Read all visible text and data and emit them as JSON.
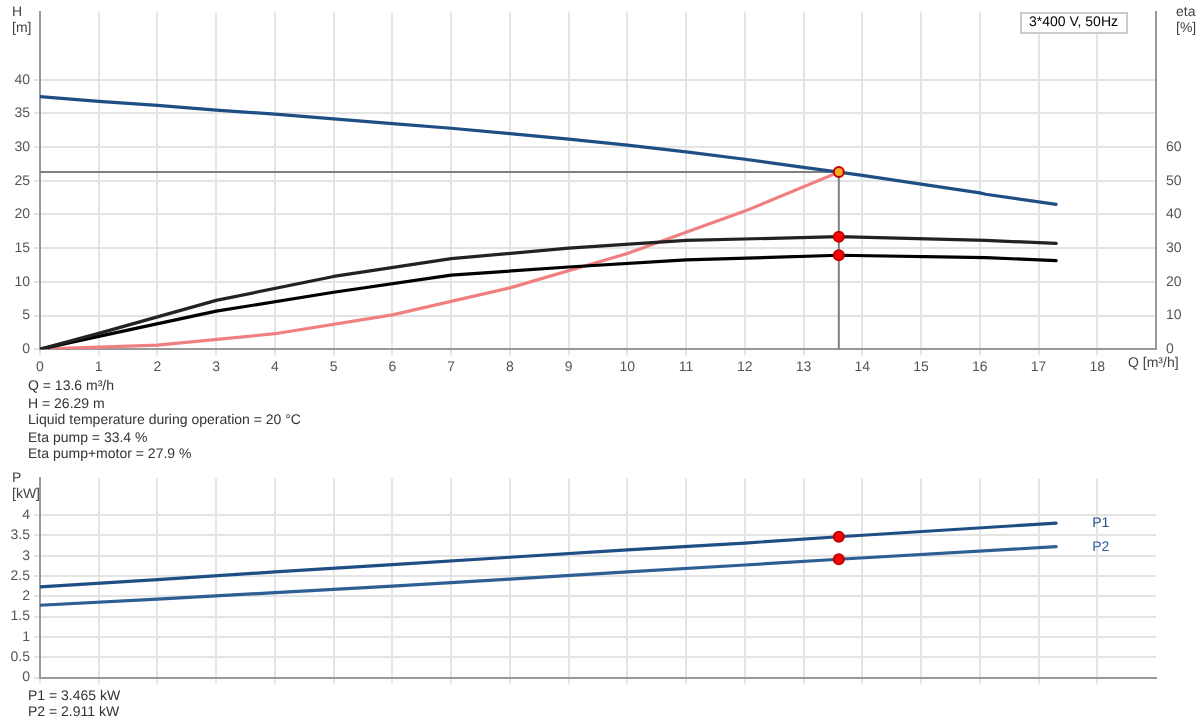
{
  "chart_data": [
    {
      "type": "line",
      "subtitle": "3*400 V, 50Hz",
      "xlabel": "Q [m³/h]",
      "ylabel": "H [m]",
      "y2label": "eta [%]",
      "xlim": [
        0,
        19
      ],
      "xticks": [
        0,
        1,
        2,
        3,
        4,
        5,
        6,
        7,
        8,
        9,
        10,
        11,
        12,
        13,
        14,
        15,
        16,
        17,
        18
      ],
      "ylim": [
        0,
        50
      ],
      "yticks": [
        0,
        5,
        10,
        15,
        20,
        25,
        30,
        35,
        40
      ],
      "y2lim": [
        0,
        100
      ],
      "y2ticks": [
        0,
        10,
        20,
        30,
        40,
        50,
        60
      ],
      "grid": true,
      "legend": false,
      "marker": "none",
      "line_style": "solid",
      "series": [
        {
          "type": "line",
          "color": "#1f4e85",
          "x": [
            0,
            1,
            2,
            3,
            4,
            5,
            6,
            7,
            8,
            9,
            10,
            11,
            12,
            13,
            13.6,
            14,
            15,
            16,
            16.1,
            17.3
          ],
          "values": [
            37.5,
            36.8,
            36.2,
            35.5,
            34.9,
            34.2,
            33.5,
            32.8,
            32.0,
            31.2,
            30.3,
            29.3,
            28.2,
            27.0,
            26.29,
            25.8,
            24.5,
            23.2,
            23.0,
            21.5
          ]
        },
        {
          "type": "line",
          "color": "#222222",
          "axis": "y2",
          "x": [
            0,
            1,
            3,
            5,
            7,
            9,
            11,
            13.6,
            16.1,
            17.3
          ],
          "values": [
            0,
            4.7,
            14.5,
            21.6,
            26.9,
            30.0,
            32.3,
            33.4,
            32.3,
            31.4
          ]
        },
        {
          "type": "line",
          "color": "#000000",
          "axis": "y2",
          "x": [
            0,
            1,
            3,
            5,
            7,
            9,
            11,
            13.6,
            16.1,
            17.3
          ],
          "values": [
            0,
            3.8,
            11.3,
            16.9,
            22.0,
            24.4,
            26.5,
            27.9,
            27.2,
            26.3
          ]
        },
        {
          "type": "line",
          "color": "#f08080",
          "x": [
            0,
            2,
            4,
            6,
            8,
            10,
            12,
            13.6
          ],
          "values": [
            0,
            0.6,
            2.3,
            5.1,
            9.1,
            14.2,
            20.5,
            26.29
          ]
        },
        {
          "type": "scatter",
          "color": "#f5a623",
          "marker": "circle",
          "x": [
            13.6
          ],
          "values": [
            26.29
          ]
        },
        {
          "type": "scatter",
          "color": "#ff0000",
          "marker": "circle",
          "axis": "y2",
          "x": [
            13.6,
            13.6
          ],
          "values": [
            33.4,
            27.9
          ]
        }
      ],
      "ref_lines": [
        {
          "axis": "x",
          "value": 13.6,
          "color": "#808080"
        },
        {
          "axis": "y",
          "value": 26.29,
          "color": "#808080"
        }
      ],
      "annotations": [
        "Q = 13.6 m³/h",
        "H = 26.29 m",
        "Liquid temperature during operation = 20 °C",
        "Eta pump = 33.4 %",
        "Eta pump+motor = 27.9 %"
      ]
    },
    {
      "type": "line",
      "ylabel": "P [kW]",
      "xlim": [
        0,
        19
      ],
      "xticks": [
        0,
        1,
        2,
        3,
        4,
        5,
        6,
        7,
        8,
        9,
        10,
        11,
        12,
        13,
        14,
        15,
        16,
        17,
        18
      ],
      "ylim": [
        0,
        4.9
      ],
      "yticks": [
        0,
        0.5,
        1,
        1.5,
        2,
        2.5,
        3,
        3.5,
        4
      ],
      "tick_labels": "y",
      "grid": true,
      "legend": false,
      "marker": "none",
      "line_style": "solid",
      "series": [
        {
          "type": "line",
          "name": "P1",
          "color": "#1f4e85",
          "x": [
            0,
            2,
            4,
            6,
            8,
            10,
            12,
            13.6,
            17.3
          ],
          "values": [
            2.23,
            2.41,
            2.6,
            2.78,
            2.96,
            3.14,
            3.31,
            3.465,
            3.8
          ]
        },
        {
          "type": "line",
          "name": "P2",
          "color": "#2e5f94",
          "x": [
            0,
            2,
            4,
            6,
            8,
            10,
            12,
            13.6,
            17.3
          ],
          "values": [
            1.78,
            1.93,
            2.09,
            2.25,
            2.42,
            2.6,
            2.77,
            2.911,
            3.22
          ]
        },
        {
          "type": "scatter",
          "color": "#ff0000",
          "marker": "circle",
          "x": [
            13.6,
            13.6
          ],
          "values": [
            3.465,
            2.911
          ]
        }
      ],
      "annotations": [
        "P1 = 3.465 kW",
        "P2 = 2.911 kW"
      ]
    }
  ]
}
